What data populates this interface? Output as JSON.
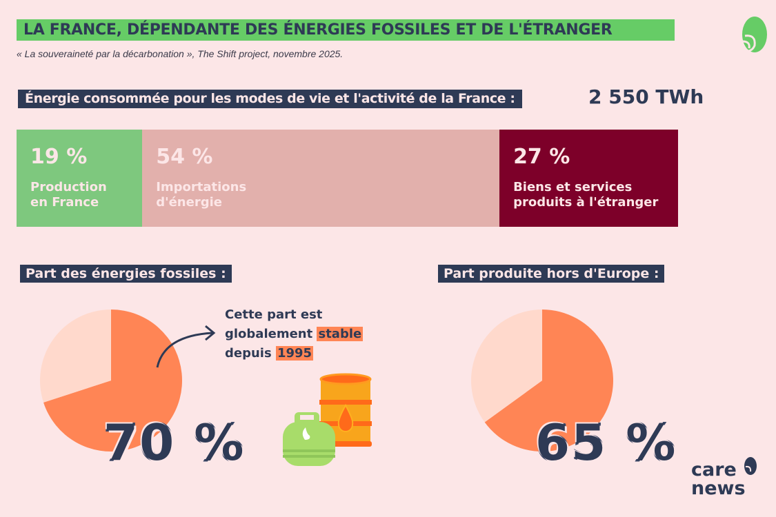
{
  "header": {
    "title": "LA FRANCE, DÉPENDANTE DES ÉNERGIES FOSSILES ET DE L'ÉTRANGER",
    "source": "« La souveraineté par la décarbonation », The Shift project, novembre 2025."
  },
  "energy": {
    "label": "Énergie consommée pour les modes de vie et l'activité de la France :",
    "value": "2 550 TWh"
  },
  "fossil": {
    "heading": "Part des énergies fossiles :",
    "big_value": "70 %",
    "note_parts": [
      "Cette part est",
      "globalement ",
      "stable",
      "depuis ",
      "1995"
    ]
  },
  "europe": {
    "heading": "Part produite hors d'Europe :",
    "big_value": "65 %"
  },
  "brand": {
    "name_line1": "care",
    "name_line2": "news"
  },
  "colors": {
    "green": "#66cc66",
    "navy": "#2e3a55",
    "orange": "#ff8555",
    "peach": "#ffd9cc",
    "pink": "#e2b0ac",
    "maroon": "#7d0029",
    "background": "#fce6e7"
  },
  "chart_data": [
    {
      "type": "bar",
      "stacked": true,
      "categories": [
        "Production en France",
        "Importations d'énergie",
        "Biens et services produits à l'étranger"
      ],
      "values": [
        19,
        54,
        27
      ],
      "labels": [
        "19 %",
        "54 %",
        "27 %"
      ],
      "label_lines": [
        [
          "Production",
          "en France"
        ],
        [
          "Importations",
          "d'énergie"
        ],
        [
          "Biens et services",
          "produits à l'étranger"
        ]
      ],
      "colors": [
        "#7ec87e",
        "#e2b0ac",
        "#7d0029"
      ],
      "text_colors": [
        "#fce6e7",
        "#fce6e7",
        "#fce6e7"
      ]
    },
    {
      "type": "pie",
      "title": "Part des énergies fossiles :",
      "values": [
        70,
        30
      ],
      "colors": [
        "#ff8555",
        "#ffd9cc"
      ]
    },
    {
      "type": "pie",
      "title": "Part produite hors d'Europe :",
      "values": [
        65,
        35
      ],
      "colors": [
        "#ff8555",
        "#ffd9cc"
      ]
    }
  ]
}
